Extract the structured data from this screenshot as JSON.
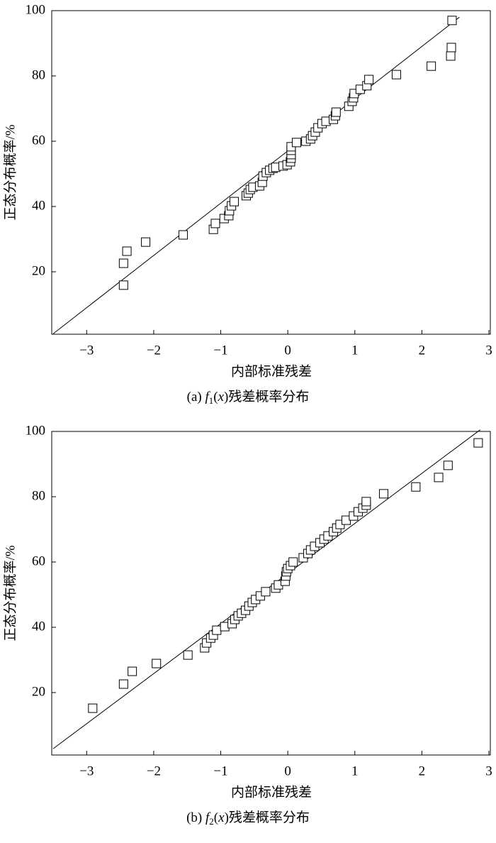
{
  "chart_data": [
    {
      "type": "scatter",
      "y_label": "正态分布概率/%",
      "x_label": "内部标准残差",
      "caption": [
        "(a) ",
        "f",
        "1",
        "(",
        "x",
        ")残差概率分布"
      ],
      "xlim": [
        -3.5,
        3
      ],
      "ylim": [
        0,
        100
      ],
      "xticks": [
        {
          "value": -3,
          "label": "−3"
        },
        {
          "value": -2,
          "label": "−2"
        },
        {
          "value": -1,
          "label": "−1"
        },
        0,
        1,
        2,
        3
      ],
      "yticks": [
        20,
        40,
        60,
        80,
        100
      ],
      "color": "#000000",
      "x": [
        -2.45,
        -2.45,
        -2.4,
        -2.12,
        -1.56,
        -1.11,
        -1.08,
        -0.95,
        -0.88,
        -0.87,
        -0.84,
        -0.8,
        -0.62,
        -0.59,
        -0.56,
        -0.52,
        -0.42,
        -0.38,
        -0.37,
        -0.32,
        -0.27,
        -0.22,
        -0.18,
        -0.07,
        -0.01,
        0.04,
        0.05,
        0.05,
        0.05,
        0.05,
        0.13,
        0.27,
        0.34,
        0.37,
        0.41,
        0.45,
        0.51,
        0.57,
        0.68,
        0.71,
        0.72,
        0.91,
        0.96,
        0.98,
        0.99,
        1.08,
        1.18,
        1.21,
        1.62,
        2.14,
        2.43,
        2.44,
        2.45
      ],
      "values": [
        15.9,
        22.6,
        26.3,
        29.1,
        31.3,
        33.0,
        34.8,
        36.3,
        37.2,
        38.7,
        40.2,
        41.5,
        43.3,
        44.1,
        45.2,
        45.9,
        46.3,
        47.4,
        49.3,
        50.4,
        51.1,
        51.7,
        52.0,
        52.4,
        52.8,
        53.7,
        54.8,
        55.9,
        57.2,
        58.3,
        59.6,
        60.0,
        60.7,
        61.7,
        62.8,
        64.1,
        65.4,
        66.1,
        66.7,
        67.8,
        68.9,
        70.7,
        72.2,
        73.3,
        74.6,
        75.9,
        77.0,
        78.9,
        80.4,
        83.0,
        86.1,
        88.7,
        97.0
      ],
      "reference_line": {
        "x": [
          -3.5,
          2.56
        ],
        "y": [
          1,
          98
        ]
      }
    },
    {
      "type": "scatter",
      "y_label": "正态分布概率/%",
      "x_label": "内部标准残差",
      "caption": [
        "(b) ",
        "f",
        "2",
        "(",
        "x",
        ")残差概率分布"
      ],
      "xlim": [
        -3.5,
        3
      ],
      "ylim": [
        0,
        100
      ],
      "xticks": [
        {
          "value": -3,
          "label": "−3"
        },
        {
          "value": -2,
          "label": "−2"
        },
        {
          "value": -1,
          "label": "−1"
        },
        0,
        1,
        2,
        3
      ],
      "yticks": [
        20,
        40,
        60,
        80,
        100
      ],
      "color": "#000000",
      "x": [
        -2.91,
        -2.45,
        -2.32,
        -1.96,
        -1.49,
        -1.24,
        -1.21,
        -1.15,
        -1.11,
        -1.06,
        -0.94,
        -0.83,
        -0.79,
        -0.74,
        -0.69,
        -0.63,
        -0.58,
        -0.53,
        -0.48,
        -0.41,
        -0.33,
        -0.18,
        -0.14,
        -0.04,
        -0.03,
        -0.02,
        0.0,
        0.04,
        0.08,
        0.23,
        0.3,
        0.34,
        0.4,
        0.48,
        0.54,
        0.6,
        0.68,
        0.73,
        0.78,
        0.87,
        0.98,
        1.05,
        1.12,
        1.17,
        1.17,
        1.43,
        1.91,
        2.25,
        2.39,
        2.84
      ],
      "values": [
        15.2,
        22.6,
        26.5,
        28.9,
        31.5,
        33.7,
        35.2,
        36.7,
        37.6,
        39.1,
        40.2,
        41.1,
        42.4,
        43.5,
        44.3,
        45.2,
        46.5,
        47.6,
        48.5,
        49.6,
        50.9,
        52.0,
        53.0,
        54.1,
        55.7,
        57.0,
        58.0,
        58.9,
        60.0,
        61.3,
        62.6,
        63.7,
        64.8,
        65.9,
        67.0,
        68.0,
        69.3,
        70.4,
        71.5,
        72.8,
        74.1,
        75.4,
        76.5,
        77.4,
        78.5,
        80.9,
        83.0,
        85.9,
        89.6,
        96.5
      ],
      "reference_line": {
        "x": [
          -3.5,
          2.87
        ],
        "y": [
          2.8,
          100.5
        ]
      }
    }
  ]
}
